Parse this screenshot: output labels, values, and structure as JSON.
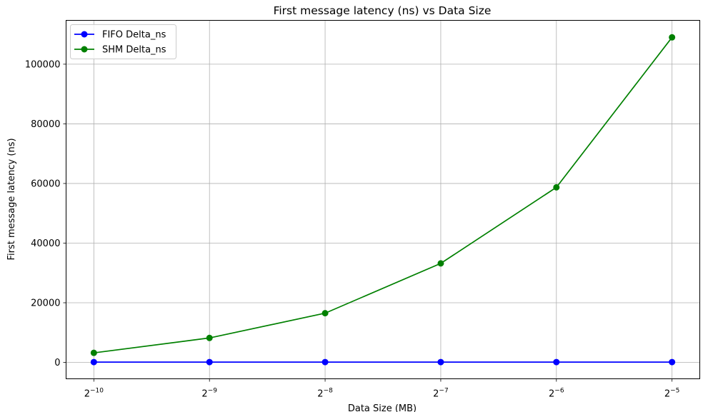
{
  "chart_data": {
    "type": "line",
    "title": "First message latency (ns) vs Data Size",
    "xlabel": "Data Size (MB)",
    "ylabel": "First message latency (ns)",
    "x_scale": "log2",
    "x": [
      0.0009765625,
      0.001953125,
      0.00390625,
      0.0078125,
      0.015625,
      0.03125
    ],
    "x_ticks": [
      {
        "base": "2",
        "exp": "−10"
      },
      {
        "base": "2",
        "exp": "−9"
      },
      {
        "base": "2",
        "exp": "−8"
      },
      {
        "base": "2",
        "exp": "−7"
      },
      {
        "base": "2",
        "exp": "−6"
      },
      {
        "base": "2",
        "exp": "−5"
      }
    ],
    "y_ticks": [
      "0",
      "20000",
      "40000",
      "60000",
      "80000",
      "100000"
    ],
    "ylim": [
      -5500,
      114700
    ],
    "grid": true,
    "legend_position": "top-left",
    "series": [
      {
        "name": "FIFO Delta_ns",
        "color": "#0000ff",
        "marker": "circle",
        "values": [
          100,
          100,
          100,
          100,
          100,
          100
        ]
      },
      {
        "name": "SHM Delta_ns",
        "color": "#008000",
        "marker": "circle",
        "values": [
          3200,
          8200,
          16500,
          33200,
          58700,
          109000
        ]
      }
    ]
  }
}
